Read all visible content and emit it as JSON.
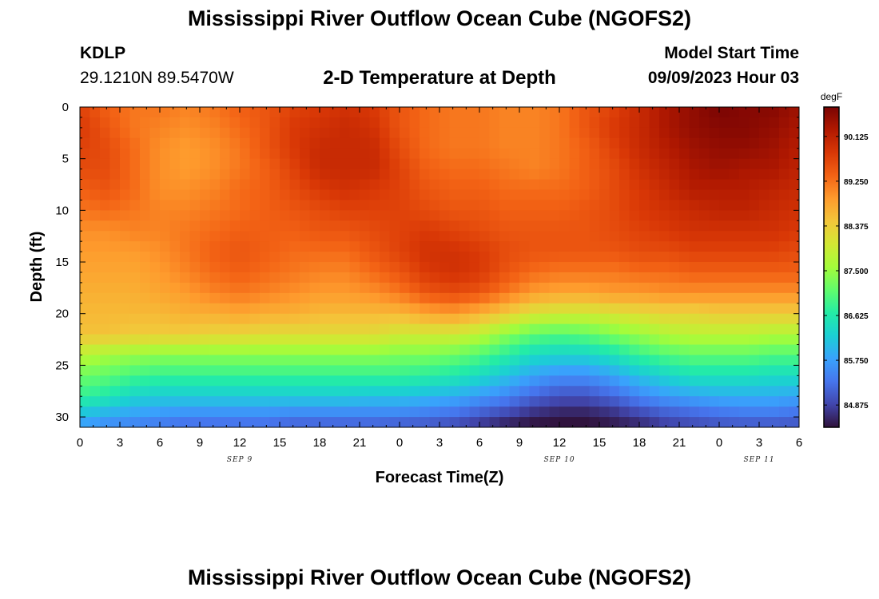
{
  "header": {
    "title": "Mississippi River Outflow Ocean Cube (NGOFS2)",
    "station_id": "KDLP",
    "coordinates": "29.1210N  89.5470W",
    "plot_title": "2-D Temperature at Depth",
    "start_label": "Model Start Time",
    "start_value": "09/09/2023 Hour 03"
  },
  "footer": {
    "title": "Mississippi River Outflow Ocean Cube (NGOFS2)"
  },
  "chart_data": {
    "type": "heatmap",
    "title": "2-D Temperature at Depth",
    "xlabel": "Forecast Time(Z)",
    "ylabel": "Depth (ft)",
    "x_tick_labels": [
      "0",
      "3",
      "6",
      "9",
      "12",
      "15",
      "18",
      "21",
      "0",
      "3",
      "6",
      "9",
      "12",
      "15",
      "18",
      "21",
      "0",
      "3",
      "6"
    ],
    "x_tick_hours": [
      0,
      3,
      6,
      9,
      12,
      15,
      18,
      21,
      24,
      27,
      30,
      33,
      36,
      39,
      42,
      45,
      48,
      51,
      54
    ],
    "x_range_hours": [
      0,
      54
    ],
    "date_labels": [
      {
        "text": "SEP 9",
        "hour": 12
      },
      {
        "text": "SEP 10",
        "hour": 36
      },
      {
        "text": "SEP 11",
        "hour": 51
      }
    ],
    "y_ticks": [
      0,
      5,
      10,
      15,
      20,
      25,
      30
    ],
    "y_range": [
      0,
      31
    ],
    "y_inverted": true,
    "colorbar": {
      "unit": "degF",
      "tick_labels": [
        "90.125",
        "89.250",
        "88.375",
        "87.500",
        "86.625",
        "85.750",
        "84.875"
      ],
      "tick_values": [
        90.125,
        89.25,
        88.375,
        87.5,
        86.625,
        85.75,
        84.875
      ],
      "range": [
        84.44,
        90.7
      ],
      "colors": [
        "#30123b",
        "#4145ab",
        "#4675ed",
        "#39a2fc",
        "#1bcfd4",
        "#24eca6",
        "#61fc6c",
        "#a4fc3b",
        "#d1e834",
        "#f3c63a",
        "#fe9b2d",
        "#f36315",
        "#d93806",
        "#b11901",
        "#7a0403"
      ]
    },
    "grid_hours": [
      0,
      2,
      4,
      6,
      8,
      10,
      12,
      14,
      16,
      18,
      20,
      22,
      24,
      26,
      28,
      30,
      32,
      34,
      36,
      38,
      40,
      42,
      44,
      46,
      48,
      50,
      52,
      54
    ],
    "grid_depths": [
      0,
      2,
      4,
      6,
      8,
      10,
      12,
      14,
      16,
      18,
      20,
      22,
      24,
      26,
      28,
      30,
      31
    ],
    "values": [
      [
        89.7,
        89.4,
        89.2,
        89.2,
        89.1,
        89.2,
        89.4,
        89.5,
        89.7,
        89.8,
        89.9,
        89.8,
        89.5,
        89.3,
        89.2,
        89.2,
        89.1,
        89.1,
        89.2,
        89.5,
        89.7,
        90.0,
        90.3,
        90.5,
        90.7,
        90.6,
        90.6,
        90.4
      ],
      [
        89.8,
        89.5,
        89.2,
        89.1,
        89.0,
        89.1,
        89.3,
        89.5,
        89.8,
        89.9,
        90.0,
        89.9,
        89.5,
        89.3,
        89.2,
        89.2,
        89.1,
        89.1,
        89.2,
        89.5,
        89.8,
        90.0,
        90.3,
        90.5,
        90.6,
        90.6,
        90.5,
        90.3
      ],
      [
        89.7,
        89.6,
        89.3,
        89.0,
        88.9,
        89.0,
        89.2,
        89.5,
        89.8,
        90.0,
        90.0,
        90.0,
        89.6,
        89.3,
        89.2,
        89.2,
        89.1,
        89.1,
        89.2,
        89.4,
        89.7,
        90.0,
        90.2,
        90.4,
        90.5,
        90.5,
        90.4,
        90.2
      ],
      [
        89.6,
        89.6,
        89.3,
        89.0,
        88.9,
        89.0,
        89.2,
        89.4,
        89.7,
        90.0,
        90.0,
        90.0,
        89.7,
        89.4,
        89.3,
        89.3,
        89.2,
        89.1,
        89.2,
        89.4,
        89.6,
        89.9,
        90.1,
        90.3,
        90.4,
        90.3,
        90.3,
        90.1
      ],
      [
        89.4,
        89.5,
        89.3,
        89.0,
        89.0,
        89.1,
        89.3,
        89.4,
        89.6,
        89.8,
        89.9,
        89.8,
        89.7,
        89.5,
        89.4,
        89.4,
        89.3,
        89.3,
        89.3,
        89.4,
        89.6,
        89.8,
        90.0,
        90.2,
        90.2,
        90.2,
        90.1,
        90.0
      ],
      [
        89.2,
        89.3,
        89.2,
        89.1,
        89.1,
        89.2,
        89.3,
        89.4,
        89.5,
        89.6,
        89.7,
        89.7,
        89.7,
        89.6,
        89.5,
        89.5,
        89.4,
        89.4,
        89.4,
        89.5,
        89.6,
        89.8,
        89.9,
        90.0,
        90.1,
        90.1,
        90.0,
        89.9
      ],
      [
        89.0,
        89.0,
        89.1,
        89.1,
        89.2,
        89.3,
        89.4,
        89.4,
        89.4,
        89.5,
        89.5,
        89.6,
        89.7,
        89.8,
        89.7,
        89.6,
        89.5,
        89.5,
        89.5,
        89.5,
        89.6,
        89.7,
        89.8,
        89.9,
        89.9,
        89.9,
        89.9,
        89.8
      ],
      [
        88.9,
        88.9,
        88.9,
        89.0,
        89.2,
        89.4,
        89.5,
        89.4,
        89.3,
        89.3,
        89.3,
        89.5,
        89.7,
        89.9,
        89.9,
        89.8,
        89.6,
        89.5,
        89.5,
        89.5,
        89.5,
        89.6,
        89.6,
        89.7,
        89.7,
        89.7,
        89.7,
        89.6
      ],
      [
        88.8,
        88.8,
        88.8,
        88.9,
        89.1,
        89.3,
        89.4,
        89.3,
        89.2,
        89.1,
        89.1,
        89.3,
        89.5,
        89.8,
        89.9,
        89.8,
        89.5,
        89.3,
        89.2,
        89.2,
        89.2,
        89.3,
        89.3,
        89.4,
        89.4,
        89.4,
        89.4,
        89.4
      ],
      [
        88.7,
        88.7,
        88.7,
        88.8,
        88.9,
        89.1,
        89.2,
        89.1,
        89.0,
        88.9,
        88.9,
        89.0,
        89.2,
        89.5,
        89.6,
        89.5,
        89.2,
        88.9,
        88.8,
        88.8,
        88.9,
        88.9,
        89.0,
        89.0,
        89.0,
        89.0,
        89.0,
        89.0
      ],
      [
        88.6,
        88.6,
        88.6,
        88.6,
        88.7,
        88.7,
        88.8,
        88.7,
        88.7,
        88.6,
        88.6,
        88.6,
        88.6,
        88.8,
        88.9,
        88.7,
        88.4,
        88.1,
        88.0,
        88.0,
        88.1,
        88.2,
        88.3,
        88.3,
        88.4,
        88.4,
        88.4,
        88.4
      ],
      [
        88.5,
        88.5,
        88.4,
        88.4,
        88.4,
        88.3,
        88.3,
        88.2,
        88.2,
        88.2,
        88.2,
        88.2,
        88.0,
        88.0,
        88.0,
        87.8,
        87.4,
        87.1,
        87.0,
        87.1,
        87.3,
        87.5,
        87.7,
        87.8,
        87.8,
        87.8,
        87.7,
        87.7
      ],
      [
        87.8,
        87.6,
        87.5,
        87.4,
        87.4,
        87.4,
        87.4,
        87.4,
        87.4,
        87.4,
        87.4,
        87.4,
        87.3,
        87.3,
        87.2,
        87.0,
        86.7,
        86.4,
        86.3,
        86.3,
        86.5,
        86.8,
        87.0,
        87.1,
        87.1,
        87.1,
        87.0,
        87.0
      ],
      [
        87.2,
        87.1,
        86.9,
        86.8,
        86.8,
        86.8,
        86.8,
        86.8,
        86.8,
        86.8,
        86.8,
        86.8,
        86.8,
        86.7,
        86.6,
        86.4,
        86.1,
        85.8,
        85.6,
        85.6,
        85.8,
        86.1,
        86.3,
        86.5,
        86.5,
        86.5,
        86.4,
        86.4
      ],
      [
        86.8,
        86.6,
        86.3,
        86.2,
        86.2,
        86.2,
        86.2,
        86.2,
        86.2,
        86.2,
        86.2,
        86.1,
        86.1,
        86.0,
        85.9,
        85.7,
        85.5,
        85.2,
        85.0,
        85.0,
        85.2,
        85.5,
        85.7,
        85.8,
        85.9,
        85.9,
        85.9,
        85.8
      ],
      [
        86.0,
        85.8,
        85.7,
        85.6,
        85.5,
        85.5,
        85.5,
        85.5,
        85.4,
        85.4,
        85.4,
        85.4,
        85.4,
        85.3,
        85.2,
        85.0,
        84.8,
        84.6,
        84.5,
        84.5,
        84.6,
        84.8,
        85.0,
        85.1,
        85.2,
        85.3,
        85.3,
        85.2
      ],
      [
        85.7,
        85.5,
        85.4,
        85.3,
        85.2,
        85.2,
        85.2,
        85.2,
        85.1,
        85.1,
        85.1,
        85.1,
        85.0,
        85.0,
        84.9,
        84.7,
        84.5,
        84.4,
        84.4,
        84.4,
        84.5,
        84.6,
        84.8,
        84.9,
        85.0,
        85.0,
        85.0,
        85.0
      ]
    ]
  }
}
